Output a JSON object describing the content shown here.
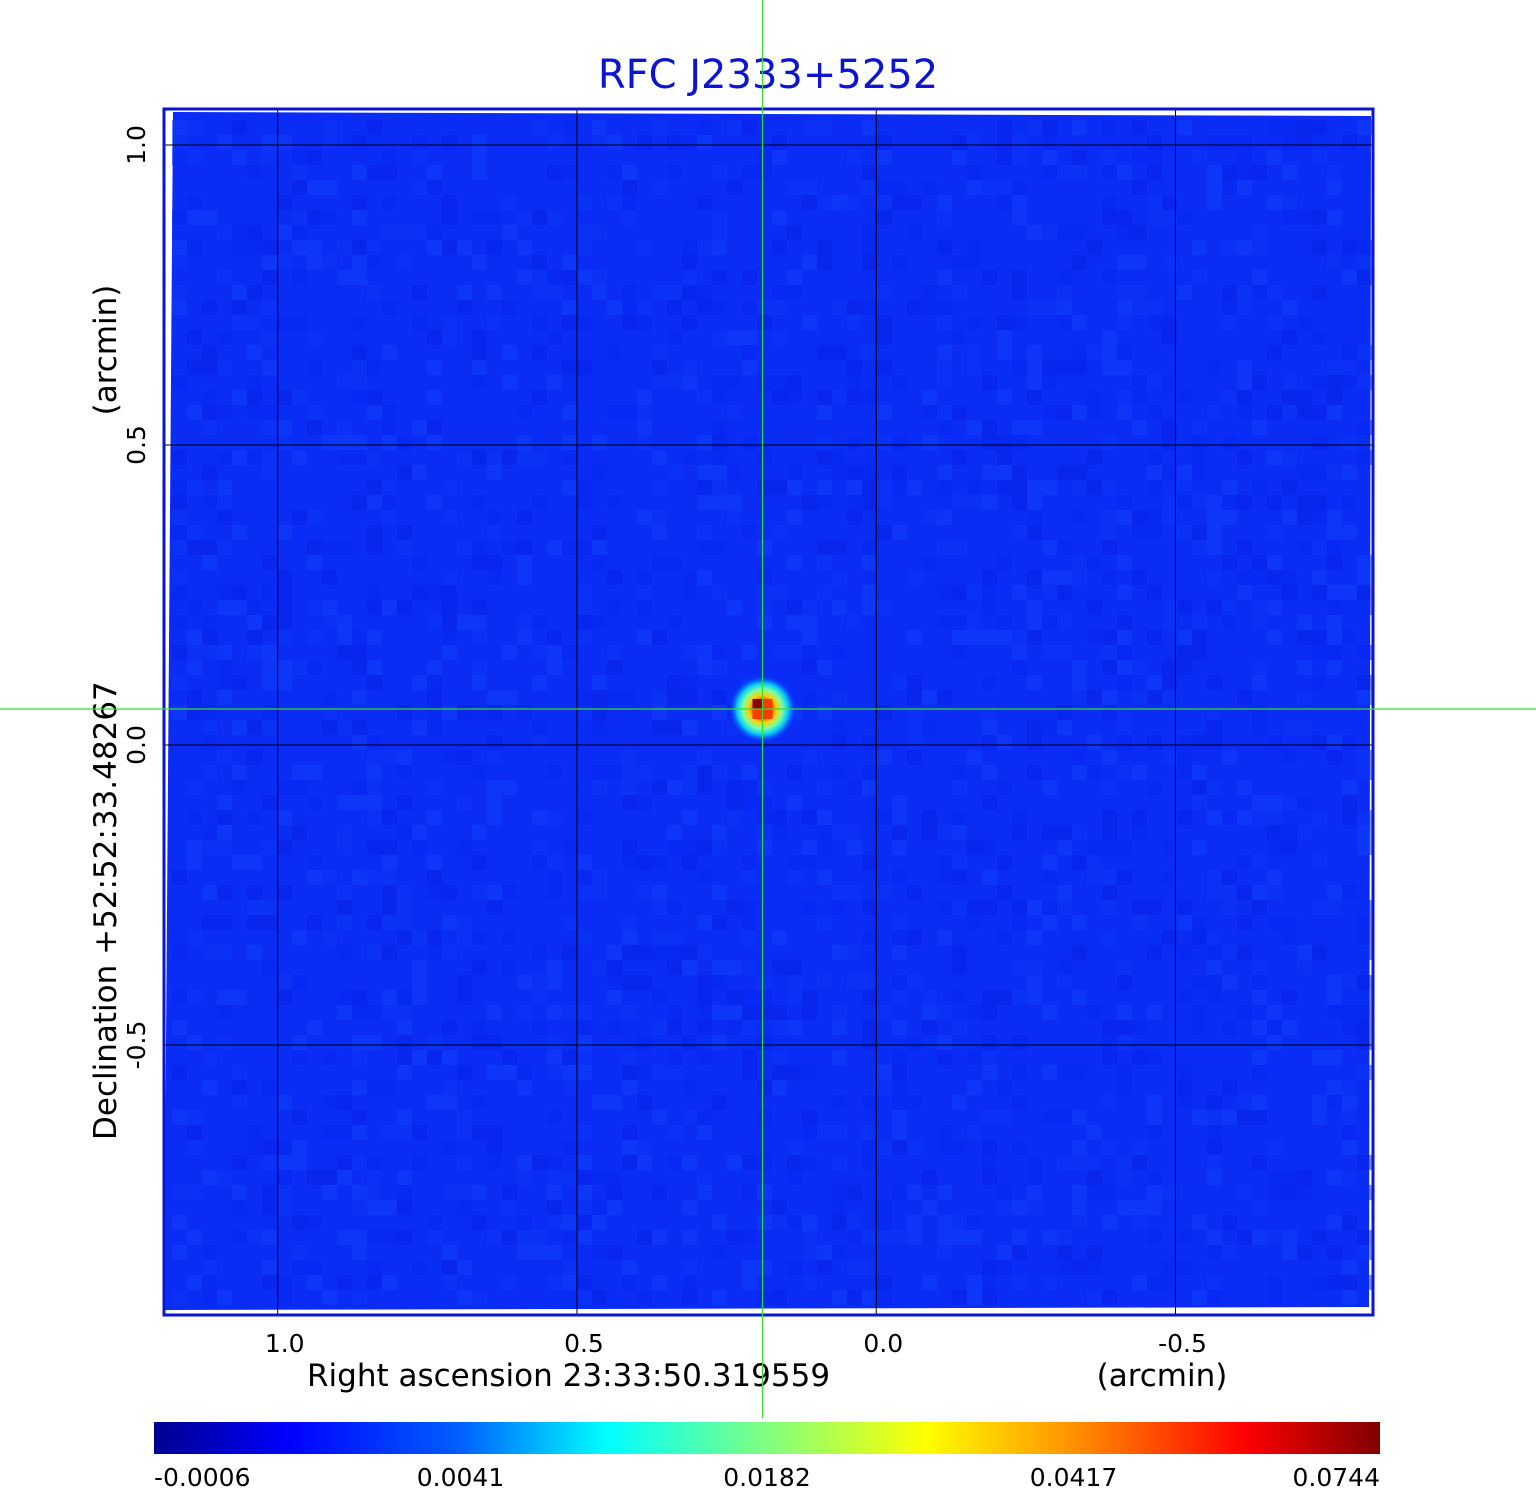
{
  "chart_data": {
    "type": "heatmap",
    "title": "RFC J2333+5252",
    "xlabel": "Right ascension  23:33:50.319559",
    "xunit": "(arcmin)",
    "ylabel": "Declination  +52:52:33.48267",
    "yunit": "(arcmin)",
    "xlim": [
      1.19,
      -0.83
    ],
    "ylim": [
      -0.95,
      1.06
    ],
    "x_ticks": [
      {
        "value": 1.0,
        "label": "1.0"
      },
      {
        "value": 0.5,
        "label": "0.5"
      },
      {
        "value": 0.0,
        "label": "0.0"
      },
      {
        "value": -0.5,
        "label": "-0.5"
      }
    ],
    "y_ticks": [
      {
        "value": 1.0,
        "label": "1.0"
      },
      {
        "value": 0.5,
        "label": "0.5"
      },
      {
        "value": 0.0,
        "label": "0.0"
      },
      {
        "value": -0.5,
        "label": "-0.5"
      }
    ],
    "grid": true,
    "colormap": "jet",
    "background_level": 0.0,
    "source": {
      "x": 0.19,
      "y": 0.06,
      "peak": 0.0744
    },
    "crosshair": {
      "x": 0.19,
      "y": 0.06,
      "color": "#33dd33"
    },
    "colorbar": {
      "orientation": "horizontal",
      "position": "bottom",
      "ticks": [
        "-0.0006",
        "0.0041",
        "0.0182",
        "0.0417",
        "0.0744"
      ]
    }
  },
  "colors": {
    "title": "#0a14d2",
    "frame": "#0a14d2",
    "grid": "#000000",
    "crosshair": "#33dd33"
  }
}
